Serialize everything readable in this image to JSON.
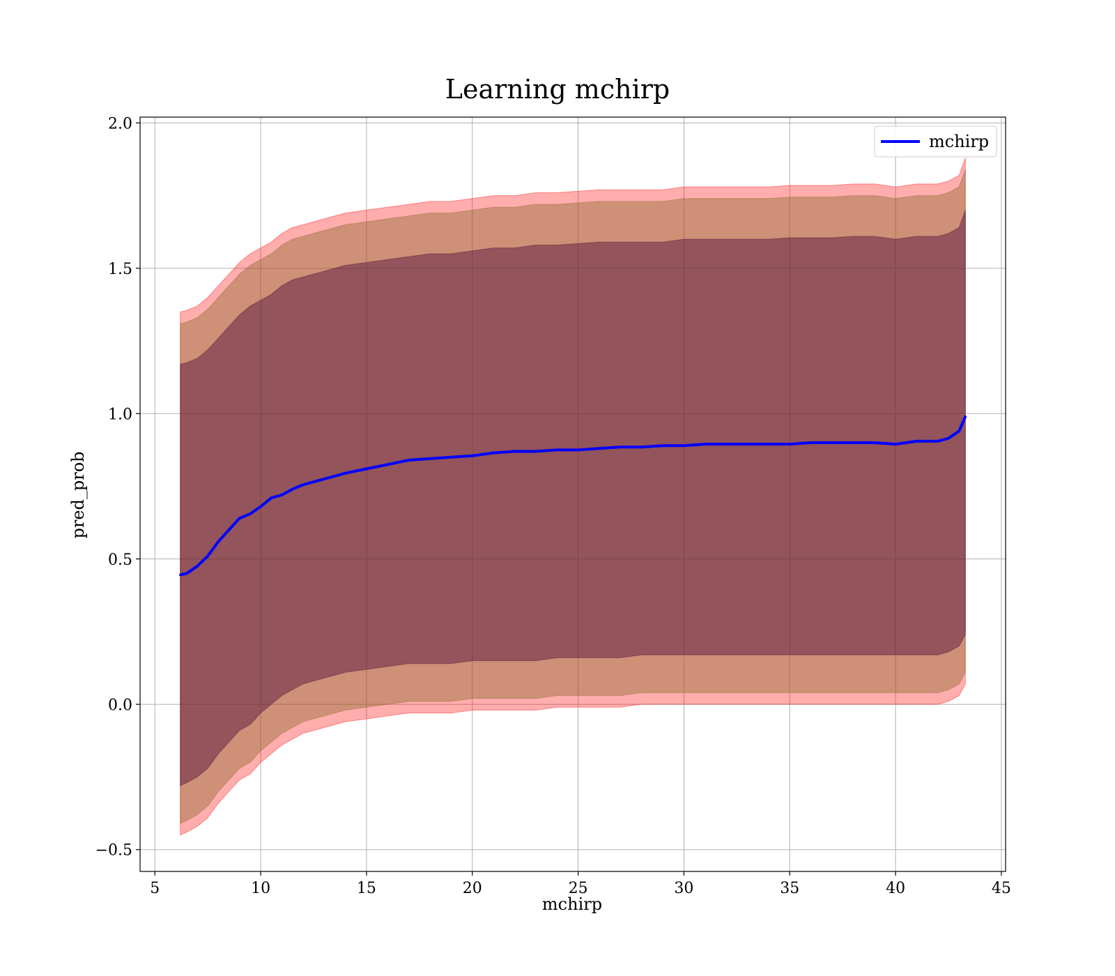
{
  "chart_data": {
    "type": "area",
    "title": "Learning mchirp",
    "xlabel": "mchirp",
    "ylabel": "pred_prob",
    "xlim": [
      4.3,
      45.2
    ],
    "ylim": [
      -0.575,
      2.02
    ],
    "xticks": [
      5,
      10,
      15,
      20,
      25,
      30,
      35,
      40,
      45
    ],
    "xtick_labels": [
      "5",
      "10",
      "15",
      "20",
      "25",
      "30",
      "35",
      "40",
      "45"
    ],
    "yticks": [
      -0.5,
      0.0,
      0.5,
      1.0,
      1.5,
      2.0
    ],
    "ytick_labels": [
      "−0.5",
      "0.0",
      "0.5",
      "1.0",
      "1.5",
      "2.0"
    ],
    "grid": true,
    "legend": {
      "position": "top-right",
      "entries": [
        "mchirp"
      ]
    },
    "colors": {
      "line": "#0000ff",
      "outer_band": "#ff0000",
      "inner_band": "#4b0b3c",
      "mid_band": "#8a6a2a",
      "grid": "#b0b0b0"
    },
    "x": [
      6.2,
      6.5,
      7,
      7.5,
      8,
      8.5,
      9,
      9.5,
      10,
      10.5,
      11,
      11.5,
      12,
      13,
      14,
      15,
      16,
      17,
      18,
      19,
      20,
      21,
      22,
      23,
      24,
      25,
      26,
      27,
      28,
      29,
      30,
      31,
      32,
      33,
      34,
      35,
      36,
      37,
      38,
      39,
      40,
      41,
      42,
      42.5,
      43,
      43.3
    ],
    "series": [
      {
        "name": "mchirp",
        "values": [
          0.445,
          0.45,
          0.475,
          0.51,
          0.56,
          0.6,
          0.64,
          0.655,
          0.68,
          0.71,
          0.72,
          0.74,
          0.755,
          0.775,
          0.795,
          0.81,
          0.825,
          0.84,
          0.845,
          0.85,
          0.855,
          0.865,
          0.87,
          0.87,
          0.875,
          0.875,
          0.88,
          0.885,
          0.885,
          0.89,
          0.89,
          0.895,
          0.895,
          0.895,
          0.895,
          0.895,
          0.9,
          0.9,
          0.9,
          0.9,
          0.895,
          0.905,
          0.905,
          0.915,
          0.94,
          0.99
        ]
      }
    ],
    "bands": [
      {
        "label": "outer",
        "upper": [
          1.35,
          1.355,
          1.37,
          1.4,
          1.44,
          1.48,
          1.52,
          1.55,
          1.57,
          1.59,
          1.62,
          1.64,
          1.65,
          1.67,
          1.69,
          1.7,
          1.71,
          1.72,
          1.73,
          1.73,
          1.74,
          1.75,
          1.75,
          1.76,
          1.76,
          1.765,
          1.77,
          1.77,
          1.77,
          1.77,
          1.78,
          1.78,
          1.78,
          1.78,
          1.78,
          1.785,
          1.785,
          1.785,
          1.79,
          1.79,
          1.78,
          1.79,
          1.79,
          1.8,
          1.82,
          1.88
        ],
        "lower": [
          -0.45,
          -0.44,
          -0.42,
          -0.39,
          -0.34,
          -0.3,
          -0.26,
          -0.24,
          -0.2,
          -0.17,
          -0.14,
          -0.12,
          -0.1,
          -0.08,
          -0.06,
          -0.05,
          -0.04,
          -0.03,
          -0.03,
          -0.03,
          -0.02,
          -0.02,
          -0.02,
          -0.02,
          -0.01,
          -0.01,
          -0.01,
          -0.01,
          0.0,
          0.0,
          0.0,
          0.0,
          0.0,
          0.0,
          0.0,
          0.0,
          0.0,
          0.0,
          0.0,
          0.0,
          0.0,
          0.0,
          0.0,
          0.01,
          0.03,
          0.07
        ]
      },
      {
        "label": "middle",
        "upper": [
          1.31,
          1.315,
          1.33,
          1.36,
          1.4,
          1.44,
          1.48,
          1.51,
          1.53,
          1.55,
          1.58,
          1.6,
          1.61,
          1.63,
          1.65,
          1.66,
          1.67,
          1.68,
          1.69,
          1.69,
          1.7,
          1.71,
          1.71,
          1.72,
          1.72,
          1.725,
          1.73,
          1.73,
          1.73,
          1.73,
          1.74,
          1.74,
          1.74,
          1.74,
          1.74,
          1.745,
          1.745,
          1.745,
          1.75,
          1.75,
          1.74,
          1.75,
          1.75,
          1.76,
          1.78,
          1.84
        ],
        "lower": [
          -0.41,
          -0.4,
          -0.38,
          -0.35,
          -0.3,
          -0.26,
          -0.22,
          -0.2,
          -0.16,
          -0.13,
          -0.1,
          -0.08,
          -0.06,
          -0.04,
          -0.02,
          -0.01,
          0.0,
          0.01,
          0.01,
          0.01,
          0.02,
          0.02,
          0.02,
          0.02,
          0.03,
          0.03,
          0.03,
          0.03,
          0.04,
          0.04,
          0.04,
          0.04,
          0.04,
          0.04,
          0.04,
          0.04,
          0.04,
          0.04,
          0.04,
          0.04,
          0.04,
          0.04,
          0.04,
          0.05,
          0.07,
          0.11
        ]
      },
      {
        "label": "inner",
        "upper": [
          1.17,
          1.175,
          1.19,
          1.22,
          1.26,
          1.3,
          1.34,
          1.37,
          1.39,
          1.41,
          1.44,
          1.46,
          1.47,
          1.49,
          1.51,
          1.52,
          1.53,
          1.54,
          1.55,
          1.55,
          1.56,
          1.57,
          1.57,
          1.58,
          1.58,
          1.585,
          1.59,
          1.59,
          1.59,
          1.59,
          1.6,
          1.6,
          1.6,
          1.6,
          1.6,
          1.605,
          1.605,
          1.605,
          1.61,
          1.61,
          1.6,
          1.61,
          1.61,
          1.62,
          1.64,
          1.7
        ],
        "lower": [
          -0.28,
          -0.27,
          -0.25,
          -0.22,
          -0.17,
          -0.13,
          -0.09,
          -0.07,
          -0.03,
          0.0,
          0.03,
          0.05,
          0.07,
          0.09,
          0.11,
          0.12,
          0.13,
          0.14,
          0.14,
          0.14,
          0.15,
          0.15,
          0.15,
          0.15,
          0.16,
          0.16,
          0.16,
          0.16,
          0.17,
          0.17,
          0.17,
          0.17,
          0.17,
          0.17,
          0.17,
          0.17,
          0.17,
          0.17,
          0.17,
          0.17,
          0.17,
          0.17,
          0.17,
          0.18,
          0.2,
          0.24
        ]
      }
    ]
  }
}
